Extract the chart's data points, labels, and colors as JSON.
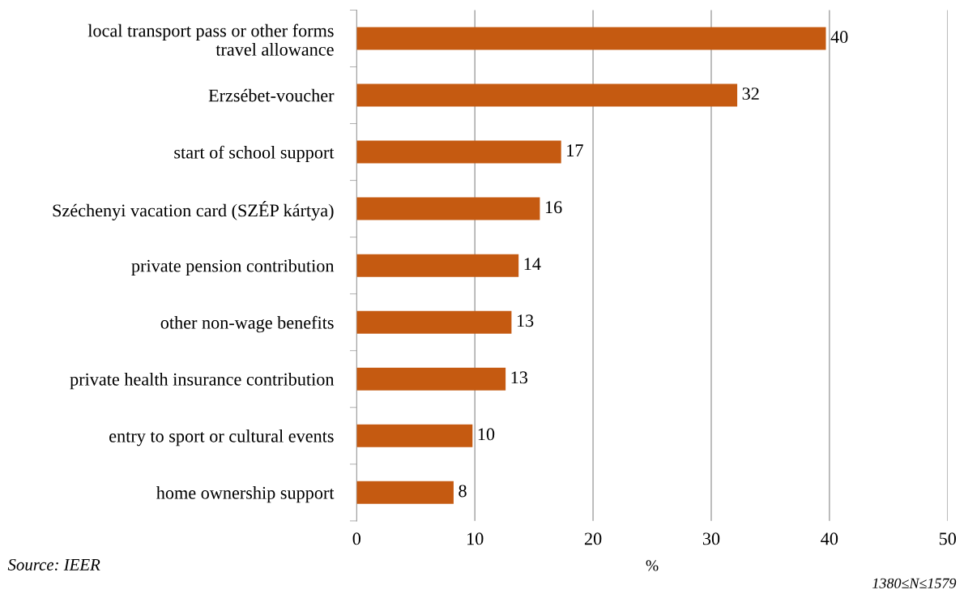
{
  "chart_data": {
    "type": "bar",
    "orientation": "horizontal",
    "xlabel": "%",
    "categories": [
      "local transport pass or other forms\ntravel allowance",
      "Erzsébet-voucher",
      "start of school support",
      "Széchenyi vacation card (SZÉP kártya)",
      "private pension contribution",
      "other non-wage benefits",
      "private health insurance contribution",
      "entry to sport or cultural events",
      "home ownership support"
    ],
    "values": [
      39.7,
      32.2,
      17.3,
      15.5,
      13.7,
      13.1,
      12.6,
      9.8,
      8.2
    ],
    "value_labels": [
      "40",
      "32",
      "17",
      "16",
      "14",
      "13",
      "13",
      "10",
      "8"
    ],
    "color": "#c55a11",
    "xlim": [
      0,
      50
    ],
    "xticks": [
      0,
      10,
      20,
      30,
      40,
      50
    ],
    "grid": "x",
    "annotations": [
      "Source: IEER",
      "1380≤N≤1579"
    ]
  }
}
